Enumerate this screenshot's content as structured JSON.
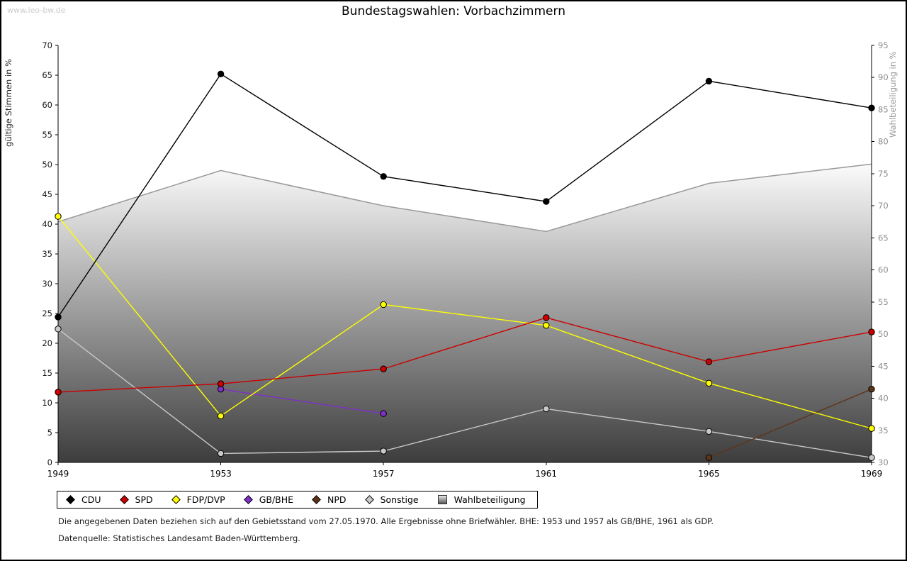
{
  "watermark": {
    "text": "www.leo-bw.de"
  },
  "chart_data": {
    "type": "line",
    "title": "Bundestagswahlen: Vorbachzimmern",
    "categories": [
      "1949",
      "1953",
      "1957",
      "1961",
      "1965",
      "1969"
    ],
    "left_axis": {
      "label": "gültige Stimmen in %",
      "min": 0,
      "max": 70,
      "tick_step": 5
    },
    "right_axis": {
      "label": "Wahlbeteiligung in %",
      "min": 30,
      "max": 95,
      "tick_step": 5
    },
    "series": [
      {
        "name": "CDU",
        "color": "#000000",
        "values": [
          24.4,
          65.2,
          48.0,
          43.8,
          64.0,
          59.5
        ]
      },
      {
        "name": "SPD",
        "color": "#cc0000",
        "values": [
          11.8,
          13.2,
          15.7,
          24.3,
          16.9,
          21.9
        ]
      },
      {
        "name": "FDP/DVP",
        "color": "#ffff00",
        "values": [
          41.3,
          7.8,
          26.5,
          23.0,
          13.3,
          5.7
        ]
      },
      {
        "name": "GB/BHE",
        "color": "#7f30c8",
        "values": [
          null,
          12.3,
          8.2,
          null,
          null,
          null
        ]
      },
      {
        "name": "NPD",
        "color": "#5e3418",
        "values": [
          null,
          null,
          null,
          null,
          0.8,
          12.3
        ]
      },
      {
        "name": "Sonstige",
        "color": "#c9c9c9",
        "values": [
          22.4,
          1.5,
          1.9,
          9.0,
          5.2,
          0.8
        ]
      }
    ],
    "area_series": {
      "name": "Wahlbeteiligung",
      "axis": "right",
      "values": [
        67.5,
        75.5,
        70.0,
        66.0,
        73.5,
        76.5
      ],
      "outline_color": "#999999",
      "fill_top": "#fbfbfb",
      "fill_bottom": "#3d3d3d"
    },
    "legend_position": "bottom"
  },
  "legend": {
    "items": [
      {
        "name": "CDU",
        "color": "#000000",
        "shape": "diamond"
      },
      {
        "name": "SPD",
        "color": "#cc0000",
        "shape": "diamond"
      },
      {
        "name": "FDP/DVP",
        "color": "#ffff00",
        "shape": "diamond"
      },
      {
        "name": "GB/BHE",
        "color": "#7f30c8",
        "shape": "diamond"
      },
      {
        "name": "NPD",
        "color": "#5e3418",
        "shape": "diamond"
      },
      {
        "name": "Sonstige",
        "color": "#c9c9c9",
        "shape": "diamond"
      },
      {
        "name": "Wahlbeteiligung",
        "color": "#aaaaaa",
        "shape": "square"
      }
    ]
  },
  "footnotes": [
    "Die angegebenen Daten beziehen sich auf den Gebietsstand vom 27.05.1970. Alle Ergebnisse ohne Briefwähler. BHE: 1953 und 1957 als GB/BHE, 1961 als GDP.",
    "Datenquelle: Statistisches Landesamt Baden-Württemberg."
  ]
}
